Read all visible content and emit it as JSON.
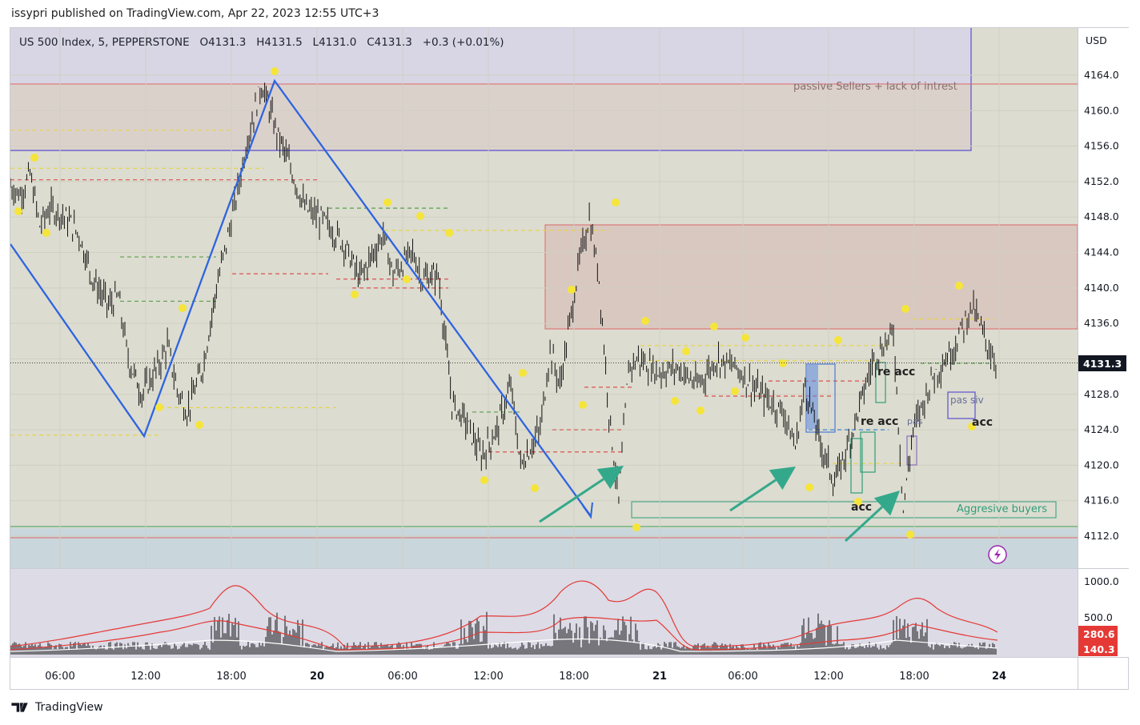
{
  "header": {
    "published": "issypri published on TradingView.com, Apr 22, 2023 12:55 UTC+3",
    "symbol": "US 500 Index, 5, PEPPERSTONE",
    "open": "O4131.3",
    "high": "H4131.5",
    "low": "L4131.0",
    "close": "C4131.3",
    "change": "+0.3 (+0.01%)"
  },
  "footer": {
    "brand": "TradingView"
  },
  "chart_data": {
    "type": "line",
    "currency": "USD",
    "current_price": "4131.3",
    "y_ticks": [
      4112.0,
      4116.0,
      4120.0,
      4124.0,
      4128.0,
      4132.0,
      4136.0,
      4140.0,
      4144.0,
      4148.0,
      4152.0,
      4156.0,
      4160.0,
      4164.0
    ],
    "x_ticks": [
      "06:00",
      "12:00",
      "18:00",
      "20",
      "06:00",
      "12:00",
      "18:00",
      "21",
      "06:00",
      "12:00",
      "18:00",
      "24"
    ],
    "price_series": [
      [
        0,
        4151.5
      ],
      [
        0.05,
        4150.5
      ],
      [
        0.1,
        4152.8
      ],
      [
        0.15,
        4147
      ],
      [
        0.2,
        4149
      ],
      [
        0.25,
        4148.5
      ],
      [
        0.3,
        4147.5
      ],
      [
        0.35,
        4146
      ],
      [
        0.42,
        4141
      ],
      [
        0.5,
        4138
      ],
      [
        0.55,
        4139
      ],
      [
        0.6,
        4132
      ],
      [
        0.67,
        4128
      ],
      [
        0.75,
        4131
      ],
      [
        0.8,
        4133.5
      ],
      [
        0.85,
        4128.5
      ],
      [
        0.9,
        4126
      ],
      [
        0.98,
        4131
      ],
      [
        1.05,
        4140
      ],
      [
        1.15,
        4150
      ],
      [
        1.2,
        4156
      ],
      [
        1.28,
        4163
      ],
      [
        1.35,
        4158
      ],
      [
        1.42,
        4154
      ],
      [
        1.5,
        4149
      ],
      [
        1.6,
        4147.5
      ],
      [
        1.7,
        4145
      ],
      [
        1.78,
        4141
      ],
      [
        1.85,
        4144
      ],
      [
        1.9,
        4146
      ],
      [
        1.95,
        4141.5
      ],
      [
        2.05,
        4144
      ],
      [
        2.1,
        4141
      ],
      [
        2.18,
        4141.5
      ],
      [
        2.25,
        4127
      ],
      [
        2.32,
        4125
      ],
      [
        2.4,
        4121
      ],
      [
        2.48,
        4124
      ],
      [
        2.55,
        4129
      ],
      [
        2.6,
        4120
      ],
      [
        2.7,
        4124
      ],
      [
        2.75,
        4133
      ],
      [
        2.8,
        4129
      ],
      [
        2.85,
        4136
      ],
      [
        2.9,
        4143
      ],
      [
        2.95,
        4148
      ],
      [
        3.0,
        4141
      ],
      [
        3.05,
        4126
      ],
      [
        3.1,
        4116
      ],
      [
        3.15,
        4131
      ],
      [
        3.2,
        4132
      ],
      [
        3.3,
        4130.5
      ],
      [
        3.4,
        4131
      ],
      [
        3.5,
        4129
      ],
      [
        3.6,
        4132
      ],
      [
        3.7,
        4131
      ],
      [
        3.8,
        4128.5
      ],
      [
        3.88,
        4127
      ],
      [
        3.94,
        4126
      ],
      [
        4.0,
        4122
      ],
      [
        4.05,
        4129
      ],
      [
        4.12,
        4123
      ],
      [
        4.2,
        4118
      ],
      [
        4.28,
        4123
      ],
      [
        4.35,
        4128.5
      ],
      [
        4.4,
        4132
      ],
      [
        4.5,
        4135
      ],
      [
        4.55,
        4115
      ],
      [
        4.6,
        4124
      ],
      [
        4.7,
        4130
      ],
      [
        4.8,
        4133
      ],
      [
        4.9,
        4138
      ],
      [
        4.97,
        4134
      ],
      [
        5.03,
        4131.3
      ]
    ],
    "volume_ticks": [
      "1000.0",
      "500.0"
    ],
    "volume_labels": [
      "280.6",
      "140.3"
    ],
    "annotations": [
      "passive Sellers + lack of intrest",
      "Aggresive buyers",
      "re acc",
      "re acc",
      "acc",
      "acc",
      "pas siv",
      "pas"
    ]
  }
}
